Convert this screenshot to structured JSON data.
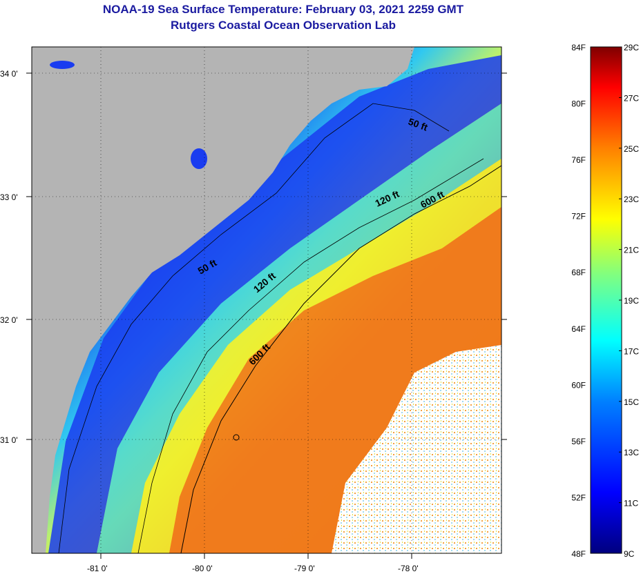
{
  "header": {
    "title": "NOAA-19 Sea Surface Temperature:  February 03, 2021 2259 GMT",
    "subtitle": "Rutgers Coastal Ocean Observation Lab"
  },
  "map": {
    "lon_labels": [
      "-81 0'",
      "-80 0'",
      "-79 0'",
      "-78 0'"
    ],
    "lat_labels": [
      "34 0'",
      "33 0'",
      "32 0'",
      "31 0'"
    ],
    "contours": [
      {
        "label": "50 ft",
        "depth_ft": 50
      },
      {
        "label": "50 ft",
        "depth_ft": 50
      },
      {
        "label": "120 ft",
        "depth_ft": 120
      },
      {
        "label": "120 ft",
        "depth_ft": 120
      },
      {
        "label": "600 ft",
        "depth_ft": 600
      },
      {
        "label": "600 ft",
        "depth_ft": 600
      }
    ],
    "colors": {
      "land": "#b4b4b4",
      "cold_shelf": "#1030d8",
      "mid_shelf": "#20c0f0",
      "outer_shelf": "#e8f030",
      "gulf_stream": "#f07018",
      "cloud": "#ffffff"
    }
  },
  "colorbar": {
    "fahrenheit_labels": [
      "84F",
      "80F",
      "76F",
      "72F",
      "68F",
      "64F",
      "60F",
      "56F",
      "52F",
      "48F"
    ],
    "celsius_labels": [
      "29C",
      "27C",
      "25C",
      "23C",
      "21C",
      "19C",
      "17C",
      "15C",
      "13C",
      "11C",
      "9C"
    ],
    "range_c": [
      9,
      29
    ],
    "range_f": [
      48,
      84
    ],
    "stops": [
      "#00007f",
      "#0000ff",
      "#0080ff",
      "#00ffff",
      "#80ff80",
      "#ffff00",
      "#ff8000",
      "#ff0000",
      "#7f0000"
    ]
  }
}
